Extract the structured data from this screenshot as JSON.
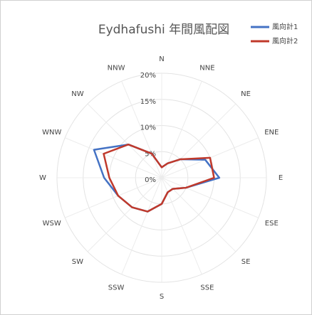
{
  "chart_data": {
    "type": "radar",
    "title": "Eydhafushi 年間風配図",
    "categories": [
      "N",
      "NNE",
      "NE",
      "ENE",
      "E",
      "ESE",
      "SE",
      "SSE",
      "S",
      "SSW",
      "SW",
      "WSW",
      "W",
      "WNW",
      "NW",
      "NNW"
    ],
    "series": [
      {
        "name": "風向計1",
        "color": "#4472c4",
        "values": [
          2,
          3,
          5,
          9,
          11,
          5,
          3,
          3,
          5,
          7,
          8,
          9,
          11,
          14,
          9,
          5
        ]
      },
      {
        "name": "風向計2",
        "color": "#c0392b",
        "values": [
          2,
          3,
          5,
          10,
          10,
          5,
          3,
          3,
          5,
          7,
          8,
          9,
          10,
          12,
          9,
          5
        ]
      }
    ],
    "ylim": [
      0,
      20
    ],
    "yticks": [
      {
        "value": 0,
        "label": "0%"
      },
      {
        "value": 5,
        "label": "5%"
      },
      {
        "value": 10,
        "label": "10%"
      },
      {
        "value": 15,
        "label": "15%"
      },
      {
        "value": 20,
        "label": "20%"
      }
    ],
    "grid": true,
    "legend": "top-right"
  }
}
